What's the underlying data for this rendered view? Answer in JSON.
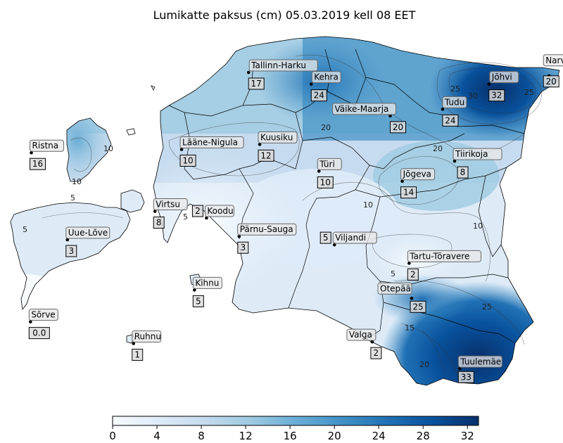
{
  "title": "Lumikatte paksus (cm) 05.03.2019 kell 08 EET",
  "colorbar": {
    "ticks": [
      "0",
      "4",
      "8",
      "12",
      "16",
      "20",
      "24",
      "28",
      "32"
    ],
    "min": 0,
    "max": 33,
    "colors": [
      "#f7fbff",
      "#deebf7",
      "#c6dbef",
      "#9ecae1",
      "#6baed6",
      "#4292c6",
      "#2171b5",
      "#08519c",
      "#08306b"
    ]
  },
  "stations": [
    {
      "id": "tallinn-harku",
      "name": "Tallinn-Harku",
      "value": "17",
      "lon": 24.6,
      "lat": 59.4
    },
    {
      "id": "kehra",
      "name": "Kehra",
      "value": "24",
      "lon": 25.33,
      "lat": 59.33
    },
    {
      "id": "johvi",
      "name": "Jõhvi",
      "value": "32",
      "lon": 27.4,
      "lat": 59.33
    },
    {
      "id": "narva",
      "name": "Narva",
      "value": "20",
      "lon": 28.1,
      "lat": 59.38
    },
    {
      "id": "vaike-maarja",
      "name": "Väike-Maarja",
      "value": "20",
      "lon": 26.25,
      "lat": 59.14
    },
    {
      "id": "tudu",
      "name": "Tudu",
      "value": "24",
      "lon": 26.86,
      "lat": 59.18
    },
    {
      "id": "ristna",
      "name": "Ristna",
      "value": "16",
      "lon": 22.07,
      "lat": 58.92
    },
    {
      "id": "laane-nigula",
      "name": "Lääne-Nigula",
      "value": "10",
      "lon": 23.82,
      "lat": 58.94
    },
    {
      "id": "kuusiku",
      "name": "Kuusiku",
      "value": "12",
      "lon": 24.73,
      "lat": 58.97
    },
    {
      "id": "tiirikoja",
      "name": "Tiirikoja",
      "value": "8",
      "lon": 27.0,
      "lat": 58.87
    },
    {
      "id": "turi",
      "name": "Türi",
      "value": "10",
      "lon": 25.42,
      "lat": 58.81
    },
    {
      "id": "jogeva",
      "name": "Jõgeva",
      "value": "14",
      "lon": 26.39,
      "lat": 58.75
    },
    {
      "id": "virtsu",
      "name": "Virtsu",
      "value": "8",
      "lon": 23.51,
      "lat": 58.57
    },
    {
      "id": "koodu",
      "name": "Koodu",
      "value": "2",
      "lon": 24.11,
      "lat": 58.53
    },
    {
      "id": "parnu-sauga",
      "name": "Pärnu-Sauga",
      "value": "3",
      "lon": 24.49,
      "lat": 58.42
    },
    {
      "id": "uue-lowe",
      "name": "Uue-Lõve",
      "value": "3",
      "lon": 22.49,
      "lat": 58.4
    },
    {
      "id": "viljandi",
      "name": "Viljandi",
      "value": "5",
      "lon": 25.6,
      "lat": 58.37
    },
    {
      "id": "tartu-toravere",
      "name": "Tartu-Tõravere",
      "value": "2",
      "lon": 26.47,
      "lat": 58.26
    },
    {
      "id": "kihnu",
      "name": "Kihnu",
      "value": "5",
      "lon": 23.97,
      "lat": 58.1
    },
    {
      "id": "sorve",
      "name": "Sõrve",
      "value": "0.0",
      "lon": 22.06,
      "lat": 57.91
    },
    {
      "id": "otepaa",
      "name": "Otepää",
      "value": "25",
      "lon": 26.5,
      "lat": 58.05
    },
    {
      "id": "ruhnu",
      "name": "Ruhnu",
      "value": "1",
      "lon": 23.26,
      "lat": 57.78
    },
    {
      "id": "valga",
      "name": "Valga",
      "value": "2",
      "lon": 26.04,
      "lat": 57.79
    },
    {
      "id": "tuulemae",
      "name": "Tuulemäe",
      "value": "33",
      "lon": 27.06,
      "lat": 57.63
    }
  ],
  "contour_labels": [
    "5",
    "10",
    "15",
    "20",
    "25",
    "30"
  ]
}
